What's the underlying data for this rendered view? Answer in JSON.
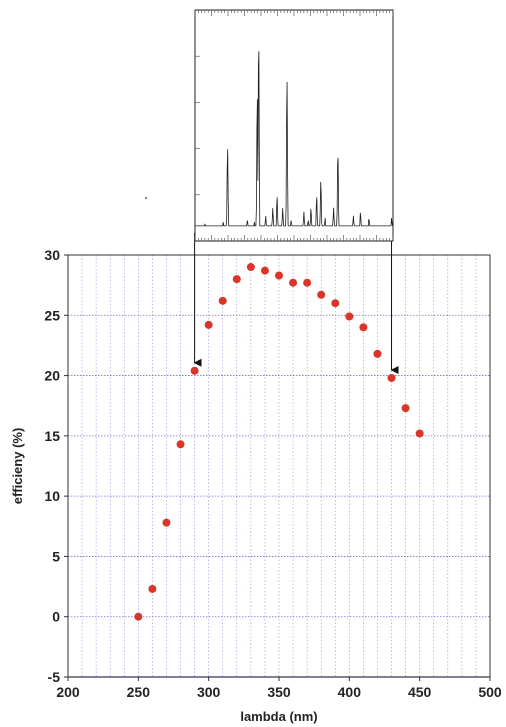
{
  "chart_data": [
    {
      "type": "scatter",
      "title": "",
      "xlabel": "lambda (nm)",
      "ylabel": "efficieny (%)",
      "xlim": [
        200,
        500
      ],
      "ylim": [
        -5,
        30
      ],
      "x_ticks": [
        200,
        250,
        300,
        350,
        400,
        450,
        500
      ],
      "y_ticks": [
        -5,
        0,
        5,
        10,
        15,
        20,
        25,
        30
      ],
      "grid": true,
      "marker_color": "#d9352b",
      "grid_color": "#6f6fd6",
      "x": [
        250,
        260,
        270,
        280,
        290,
        300,
        310,
        320,
        330,
        340,
        350,
        360,
        370,
        380,
        390,
        400,
        410,
        420,
        430,
        440,
        450
      ],
      "y": [
        0,
        2.3,
        7.8,
        14.3,
        20.4,
        24.2,
        26.2,
        28.0,
        29.0,
        28.7,
        28.3,
        27.7,
        27.7,
        26.7,
        26.0,
        24.9,
        24.0,
        21.8,
        19.8,
        17.3,
        15.2
      ],
      "annotations": [
        {
          "type": "arrow",
          "x": 290,
          "y": 20.4
        },
        {
          "type": "arrow",
          "x": 430,
          "y": 19.8
        }
      ]
    },
    {
      "type": "line",
      "title": "",
      "xlabel": "",
      "ylabel": "",
      "x_range": [
        290,
        430
      ],
      "baseline": 0.03,
      "peaks": [
        {
          "x": 297,
          "y": 0.04
        },
        {
          "x": 302,
          "y": 0.03
        },
        {
          "x": 310,
          "y": 0.05
        },
        {
          "x": 313,
          "y": 0.43
        },
        {
          "x": 318,
          "y": 0.02
        },
        {
          "x": 324,
          "y": 0.03
        },
        {
          "x": 327,
          "y": 0.06
        },
        {
          "x": 332,
          "y": 0.05
        },
        {
          "x": 334,
          "y": 0.69
        },
        {
          "x": 335,
          "y": 1.0
        },
        {
          "x": 340,
          "y": 0.08
        },
        {
          "x": 345,
          "y": 0.12
        },
        {
          "x": 348,
          "y": 0.18
        },
        {
          "x": 352,
          "y": 0.12
        },
        {
          "x": 355,
          "y": 0.78
        },
        {
          "x": 358,
          "y": 0.06
        },
        {
          "x": 367,
          "y": 0.1
        },
        {
          "x": 370,
          "y": 0.06
        },
        {
          "x": 372,
          "y": 0.12
        },
        {
          "x": 376,
          "y": 0.18
        },
        {
          "x": 379,
          "y": 0.26
        },
        {
          "x": 382,
          "y": 0.07
        },
        {
          "x": 388,
          "y": 0.12
        },
        {
          "x": 391,
          "y": 0.41
        },
        {
          "x": 397,
          "y": 0.03
        },
        {
          "x": 402,
          "y": 0.08
        },
        {
          "x": 407,
          "y": 0.1
        },
        {
          "x": 413,
          "y": 0.07
        },
        {
          "x": 425,
          "y": 0.03
        },
        {
          "x": 429,
          "y": 0.07
        }
      ]
    }
  ]
}
